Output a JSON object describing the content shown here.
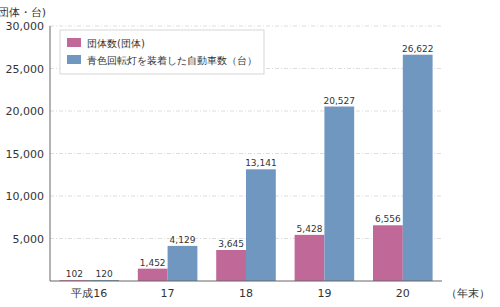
{
  "chart_data": {
    "type": "bar",
    "categories": [
      "平成16",
      "17",
      "18",
      "19",
      "20"
    ],
    "series": [
      {
        "name": "団体数(団体)",
        "color": "#c06898",
        "values": [
          102,
          1452,
          3645,
          5428,
          6556
        ],
        "value_labels": [
          "102",
          "1,452",
          "3,645",
          "5,428",
          "6,556"
        ]
      },
      {
        "name": "青色回転灯を装着した自動車数（台）",
        "color": "#7097c0",
        "values": [
          120,
          4129,
          13141,
          20527,
          26622
        ],
        "value_labels": [
          "120",
          "4,129",
          "13,141",
          "20,527",
          "26,622"
        ]
      }
    ],
    "y_label": "(団体・台)",
    "x_label": "（年末）",
    "ylim": [
      0,
      30000
    ],
    "yticks": [
      {
        "value": 5000,
        "label": "5,000"
      },
      {
        "value": 10000,
        "label": "10,000"
      },
      {
        "value": 15000,
        "label": "15,000"
      },
      {
        "value": 20000,
        "label": "20,000"
      },
      {
        "value": 25000,
        "label": "25,000"
      },
      {
        "value": 30000,
        "label": "30,000"
      }
    ],
    "grid": true,
    "legend": "upper left",
    "data_labels": true
  }
}
